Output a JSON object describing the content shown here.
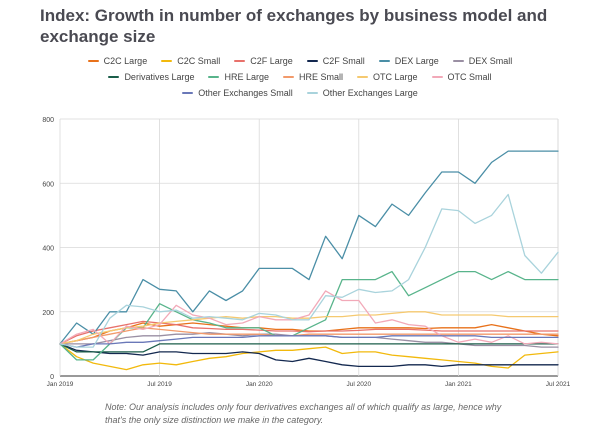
{
  "chart_data": {
    "type": "line",
    "title": "Index: Growth in number of exchanges by business model and exchange size",
    "xlabel": "",
    "ylabel": "",
    "ylim": [
      0,
      800
    ],
    "yticks": [
      "0",
      "200",
      "400",
      "600",
      "800"
    ],
    "ytick_values": [
      0,
      200,
      400,
      600,
      800
    ],
    "xticks": [
      "Jan 2019",
      "Jul 2019",
      "Jan 2020",
      "Jul 2020",
      "Jan 2021",
      "Jul 2021"
    ],
    "xtick_indices": [
      0,
      6,
      12,
      18,
      24,
      30
    ],
    "num_points": 31,
    "grid": true,
    "legend_position": "top",
    "note": "Note: Our analysis includes only four derivatives exchanges all of which qualify as large, hence why that's the only size distinction we make in the category.",
    "series": [
      {
        "name": "C2C Large",
        "color": "#e8711a",
        "values": [
          100,
          110,
          120,
          140,
          150,
          165,
          155,
          160,
          165,
          160,
          155,
          150,
          150,
          145,
          145,
          140,
          140,
          145,
          150,
          150,
          150,
          150,
          148,
          150,
          150,
          150,
          160,
          150,
          140,
          130,
          125
        ]
      },
      {
        "name": "C2C Small",
        "color": "#f2b90c",
        "values": [
          100,
          60,
          40,
          30,
          20,
          35,
          40,
          35,
          45,
          55,
          60,
          70,
          75,
          80,
          80,
          85,
          90,
          70,
          75,
          75,
          65,
          60,
          55,
          50,
          45,
          40,
          30,
          25,
          65,
          70,
          75
        ]
      },
      {
        "name": "C2F Large",
        "color": "#e8716b",
        "values": [
          100,
          125,
          140,
          150,
          160,
          170,
          165,
          160,
          150,
          148,
          145,
          145,
          143,
          140,
          140,
          138,
          140,
          140,
          142,
          145,
          145,
          145,
          143,
          140,
          140,
          140,
          140,
          140,
          140,
          140,
          140
        ]
      },
      {
        "name": "C2F Small",
        "color": "#13284f",
        "values": [
          100,
          80,
          75,
          70,
          70,
          65,
          75,
          75,
          70,
          70,
          70,
          75,
          70,
          50,
          45,
          55,
          45,
          35,
          30,
          30,
          30,
          35,
          35,
          30,
          35,
          35,
          35,
          35,
          35,
          35,
          35
        ]
      },
      {
        "name": "DEX Large",
        "color": "#4a8ea6",
        "values": [
          100,
          165,
          130,
          200,
          200,
          300,
          270,
          265,
          200,
          265,
          235,
          265,
          335,
          335,
          335,
          300,
          435,
          365,
          500,
          465,
          535,
          500,
          570,
          635,
          635,
          600,
          665,
          700,
          700,
          700,
          700
        ]
      },
      {
        "name": "DEX Small",
        "color": "#9a8fa3",
        "values": [
          100,
          100,
          100,
          110,
          120,
          125,
          125,
          130,
          130,
          135,
          130,
          125,
          130,
          130,
          125,
          125,
          125,
          120,
          120,
          120,
          115,
          110,
          105,
          105,
          100,
          95,
          95,
          95,
          95,
          90,
          90
        ]
      },
      {
        "name": "Derivatives Large",
        "color": "#1b5e4a",
        "values": [
          100,
          75,
          75,
          75,
          75,
          75,
          100,
          100,
          100,
          100,
          100,
          100,
          100,
          100,
          100,
          100,
          100,
          100,
          100,
          100,
          100,
          100,
          100,
          100,
          100,
          100,
          100,
          100,
          100,
          100,
          100
        ]
      },
      {
        "name": "HRE Large",
        "color": "#58b48b",
        "values": [
          100,
          50,
          50,
          100,
          150,
          150,
          225,
          200,
          175,
          165,
          150,
          150,
          150,
          125,
          125,
          150,
          175,
          300,
          300,
          300,
          325,
          250,
          275,
          300,
          325,
          325,
          300,
          325,
          300,
          300,
          300
        ]
      },
      {
        "name": "HRE Small",
        "color": "#f29a6b",
        "values": [
          100,
          110,
          120,
          130,
          140,
          150,
          145,
          140,
          135,
          130,
          130,
          130,
          130,
          125,
          125,
          130,
          130,
          130,
          130,
          130,
          130,
          130,
          130,
          130,
          130,
          130,
          130,
          130,
          130,
          130,
          130
        ]
      },
      {
        "name": "OTC Large",
        "color": "#f5c970",
        "values": [
          100,
          110,
          130,
          140,
          150,
          155,
          165,
          170,
          175,
          180,
          185,
          180,
          185,
          185,
          180,
          180,
          185,
          185,
          190,
          190,
          195,
          200,
          200,
          190,
          190,
          190,
          190,
          185,
          185,
          185,
          185
        ]
      },
      {
        "name": "OTC Small",
        "color": "#f2a9b8",
        "values": [
          100,
          130,
          145,
          100,
          155,
          145,
          160,
          220,
          190,
          180,
          160,
          165,
          185,
          175,
          175,
          190,
          265,
          235,
          235,
          165,
          175,
          160,
          155,
          125,
          105,
          115,
          105,
          125,
          100,
          105,
          100
        ]
      },
      {
        "name": "Other Exchanges Small",
        "color": "#6a78b8",
        "values": [
          100,
          90,
          100,
          100,
          105,
          105,
          110,
          115,
          120,
          120,
          120,
          120,
          125,
          125,
          125,
          125,
          125,
          120,
          120,
          120,
          125,
          125,
          125,
          125,
          125,
          125,
          120,
          120,
          120,
          120,
          120
        ]
      },
      {
        "name": "Other Exchanges Large",
        "color": "#a9d3dc",
        "values": [
          100,
          90,
          90,
          180,
          220,
          215,
          200,
          205,
          180,
          185,
          180,
          175,
          195,
          190,
          175,
          175,
          250,
          245,
          270,
          260,
          265,
          300,
          400,
          520,
          515,
          475,
          500,
          565,
          375,
          320,
          385
        ]
      }
    ]
  }
}
